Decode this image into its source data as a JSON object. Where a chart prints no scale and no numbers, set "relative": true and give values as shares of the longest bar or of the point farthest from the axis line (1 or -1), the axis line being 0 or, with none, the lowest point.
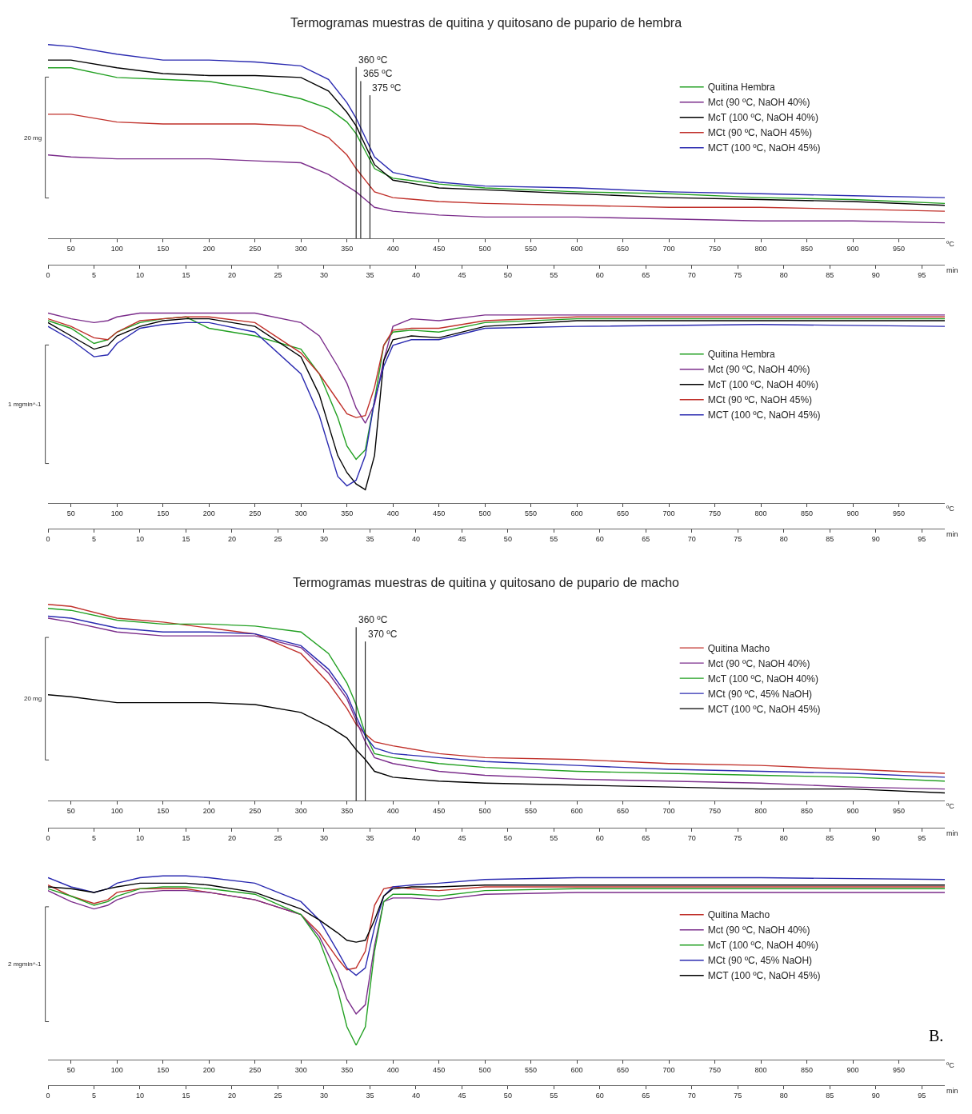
{
  "chart_data": [
    {
      "type": "line",
      "title": "Termogramas muestras de quitina y quitosano de pupario de hembra",
      "ylabel": "20 mg",
      "xlabel": "ºC",
      "x2label": "min",
      "relative": true,
      "legend": "right",
      "xlim": [
        25,
        1000
      ],
      "xticks": [
        50,
        100,
        150,
        200,
        250,
        300,
        350,
        400,
        450,
        500,
        550,
        600,
        650,
        700,
        750,
        800,
        850,
        900,
        950
      ],
      "x2lim": [
        0,
        97.5
      ],
      "x2ticks": [
        0,
        5,
        10,
        15,
        20,
        25,
        30,
        35,
        40,
        45,
        50,
        55,
        60,
        65,
        70,
        75,
        80,
        85,
        90,
        95
      ],
      "ref_lines": [
        {
          "axis": "x",
          "value": 360,
          "label": "360 ºC"
        },
        {
          "axis": "x",
          "value": 365,
          "label": "365 ºC"
        },
        {
          "axis": "x",
          "value": 375,
          "label": "375 ºC"
        }
      ],
      "x": [
        25,
        50,
        100,
        150,
        200,
        250,
        300,
        330,
        350,
        360,
        370,
        380,
        400,
        450,
        500,
        600,
        700,
        800,
        900,
        1000
      ],
      "series": [
        {
          "name": "Quitina Hembra",
          "color": "#22a022",
          "values": [
            0.88,
            0.88,
            0.83,
            0.82,
            0.81,
            0.77,
            0.72,
            0.67,
            0.6,
            0.54,
            0.45,
            0.36,
            0.31,
            0.28,
            0.26,
            0.24,
            0.23,
            0.21,
            0.2,
            0.18
          ]
        },
        {
          "name": "Mct (90 ºC, NaOH 40%)",
          "color": "#7b2d8b",
          "values": [
            0.43,
            0.42,
            0.41,
            0.41,
            0.41,
            0.4,
            0.39,
            0.33,
            0.27,
            0.24,
            0.2,
            0.16,
            0.14,
            0.12,
            0.11,
            0.11,
            0.1,
            0.09,
            0.09,
            0.08
          ]
        },
        {
          "name": "McT (100 ºC, NaOH 40%)",
          "color": "#000000",
          "values": [
            0.92,
            0.92,
            0.88,
            0.85,
            0.84,
            0.84,
            0.83,
            0.76,
            0.65,
            0.58,
            0.48,
            0.38,
            0.3,
            0.26,
            0.25,
            0.23,
            0.21,
            0.2,
            0.19,
            0.17
          ]
        },
        {
          "name": "MCt (90 ºC, NaOH 45%)",
          "color": "#c0302a",
          "values": [
            0.64,
            0.64,
            0.6,
            0.59,
            0.59,
            0.59,
            0.58,
            0.52,
            0.43,
            0.36,
            0.3,
            0.24,
            0.21,
            0.19,
            0.18,
            0.17,
            0.16,
            0.16,
            0.15,
            0.14
          ]
        },
        {
          "name": "MCT (100 ºC, NaOH 45%)",
          "color": "#2a2ab0",
          "values": [
            1.0,
            0.99,
            0.95,
            0.92,
            0.92,
            0.91,
            0.89,
            0.82,
            0.7,
            0.62,
            0.52,
            0.42,
            0.34,
            0.29,
            0.27,
            0.26,
            0.24,
            0.23,
            0.22,
            0.21
          ]
        }
      ]
    },
    {
      "type": "line",
      "ylabel": "1 mgmin^-1",
      "xlabel": "ºC",
      "x2label": "min",
      "relative": true,
      "legend": "right",
      "xlim": [
        25,
        1000
      ],
      "xticks": [
        50,
        100,
        150,
        200,
        250,
        300,
        350,
        400,
        450,
        500,
        550,
        600,
        650,
        700,
        750,
        800,
        850,
        900,
        950
      ],
      "x2lim": [
        0,
        97.5
      ],
      "x2ticks": [
        0,
        5,
        10,
        15,
        20,
        25,
        30,
        35,
        40,
        45,
        50,
        55,
        60,
        65,
        70,
        75,
        80,
        85,
        90,
        95
      ],
      "x": [
        25,
        50,
        75,
        90,
        100,
        125,
        150,
        175,
        200,
        250,
        300,
        320,
        340,
        350,
        360,
        370,
        380,
        390,
        400,
        420,
        450,
        500,
        600,
        800,
        1000
      ],
      "series": [
        {
          "name": "Quitina Hembra",
          "color": "#22a022",
          "values": [
            0.96,
            0.92,
            0.84,
            0.86,
            0.9,
            0.95,
            0.97,
            0.98,
            0.92,
            0.88,
            0.81,
            0.68,
            0.45,
            0.3,
            0.23,
            0.28,
            0.54,
            0.83,
            0.9,
            0.91,
            0.9,
            0.95,
            0.97,
            0.97,
            0.97
          ]
        },
        {
          "name": "Mct (90 ºC, NaOH 40%)",
          "color": "#7b2d8b",
          "values": [
            1.0,
            0.97,
            0.95,
            0.96,
            0.98,
            1.0,
            1.0,
            1.0,
            1.0,
            1.0,
            0.95,
            0.88,
            0.72,
            0.63,
            0.5,
            0.42,
            0.52,
            0.75,
            0.93,
            0.97,
            0.96,
            0.99,
            0.99,
            0.99,
            0.99
          ]
        },
        {
          "name": "McT (100 ºC, NaOH 40%)",
          "color": "#000000",
          "values": [
            0.95,
            0.88,
            0.81,
            0.83,
            0.88,
            0.93,
            0.96,
            0.97,
            0.97,
            0.93,
            0.77,
            0.57,
            0.25,
            0.16,
            0.1,
            0.07,
            0.25,
            0.75,
            0.86,
            0.88,
            0.87,
            0.93,
            0.96,
            0.96,
            0.96
          ]
        },
        {
          "name": "MCt (90 ºC, NaOH 45%)",
          "color": "#c0302a",
          "values": [
            0.97,
            0.93,
            0.87,
            0.86,
            0.9,
            0.96,
            0.97,
            0.98,
            0.98,
            0.95,
            0.79,
            0.68,
            0.54,
            0.47,
            0.45,
            0.46,
            0.61,
            0.83,
            0.91,
            0.92,
            0.92,
            0.96,
            0.98,
            0.98,
            0.98
          ]
        },
        {
          "name": "MCT (100 ºC, NaOH 45%)",
          "color": "#2a2ab0",
          "values": [
            0.93,
            0.86,
            0.77,
            0.78,
            0.84,
            0.92,
            0.94,
            0.95,
            0.95,
            0.9,
            0.68,
            0.46,
            0.14,
            0.09,
            0.12,
            0.25,
            0.54,
            0.72,
            0.83,
            0.86,
            0.86,
            0.92,
            0.93,
            0.94,
            0.93
          ]
        }
      ]
    },
    {
      "type": "line",
      "title": "Termogramas muestras de quitina y quitosano de pupario de macho",
      "ylabel": "20 mg",
      "xlabel": "ºC",
      "x2label": "min",
      "relative": true,
      "legend": "right",
      "xlim": [
        25,
        1000
      ],
      "xticks": [
        50,
        100,
        150,
        200,
        250,
        300,
        350,
        400,
        450,
        500,
        550,
        600,
        650,
        700,
        750,
        800,
        850,
        900,
        950
      ],
      "x2lim": [
        0,
        97.5
      ],
      "x2ticks": [
        0,
        5,
        10,
        15,
        20,
        25,
        30,
        35,
        40,
        45,
        50,
        55,
        60,
        65,
        70,
        75,
        80,
        85,
        90,
        95
      ],
      "ref_lines": [
        {
          "axis": "x",
          "value": 360,
          "label": "360 ºC"
        },
        {
          "axis": "x",
          "value": 370,
          "label": "370 ºC"
        }
      ],
      "x": [
        25,
        50,
        100,
        150,
        200,
        250,
        300,
        330,
        350,
        360,
        370,
        380,
        400,
        450,
        500,
        600,
        700,
        800,
        900,
        1000
      ],
      "series": [
        {
          "name": "Quitina Macho",
          "color": "#c0302a",
          "values": [
            1.0,
            0.99,
            0.93,
            0.91,
            0.88,
            0.85,
            0.75,
            0.6,
            0.47,
            0.39,
            0.34,
            0.3,
            0.28,
            0.24,
            0.22,
            0.21,
            0.19,
            0.18,
            0.16,
            0.14
          ]
        },
        {
          "name": "Mct (90 ºC, NaOH 40%)",
          "color": "#7b2d8b",
          "values": [
            0.93,
            0.91,
            0.86,
            0.84,
            0.84,
            0.84,
            0.78,
            0.65,
            0.52,
            0.41,
            0.3,
            0.22,
            0.19,
            0.15,
            0.13,
            0.11,
            0.1,
            0.09,
            0.07,
            0.06
          ]
        },
        {
          "name": "McT (100 ºC, NaOH 40%)",
          "color": "#22a022",
          "values": [
            0.98,
            0.97,
            0.92,
            0.9,
            0.9,
            0.89,
            0.86,
            0.75,
            0.6,
            0.49,
            0.34,
            0.24,
            0.22,
            0.19,
            0.17,
            0.15,
            0.14,
            0.13,
            0.12,
            0.1
          ]
        },
        {
          "name": "MCt (90 ºC, 45% NaOH)",
          "color": "#2a2ab0",
          "values": [
            0.94,
            0.93,
            0.88,
            0.86,
            0.86,
            0.85,
            0.79,
            0.67,
            0.54,
            0.43,
            0.33,
            0.27,
            0.24,
            0.22,
            0.2,
            0.18,
            0.16,
            0.15,
            0.14,
            0.12
          ]
        },
        {
          "name": "MCT (100 ºC, NaOH 45%)",
          "color": "#000000",
          "values": [
            0.54,
            0.53,
            0.5,
            0.5,
            0.5,
            0.49,
            0.45,
            0.38,
            0.32,
            0.26,
            0.21,
            0.15,
            0.12,
            0.1,
            0.09,
            0.08,
            0.07,
            0.06,
            0.06,
            0.04
          ]
        }
      ]
    },
    {
      "type": "line",
      "ylabel": "2 mgmin^-1",
      "xlabel": "ºC",
      "x2label": "min",
      "relative": true,
      "legend": "right",
      "annotations": [
        "B."
      ],
      "xlim": [
        25,
        1000
      ],
      "xticks": [
        50,
        100,
        150,
        200,
        250,
        300,
        350,
        400,
        450,
        500,
        550,
        600,
        650,
        700,
        750,
        800,
        850,
        900,
        950
      ],
      "x2lim": [
        0,
        97.5
      ],
      "x2ticks": [
        0,
        5,
        10,
        15,
        20,
        25,
        30,
        35,
        40,
        45,
        50,
        55,
        60,
        65,
        70,
        75,
        80,
        85,
        90,
        95
      ],
      "x": [
        25,
        50,
        75,
        90,
        100,
        125,
        150,
        175,
        200,
        250,
        300,
        320,
        340,
        350,
        360,
        370,
        380,
        390,
        400,
        420,
        450,
        500,
        600,
        800,
        1000
      ],
      "series": [
        {
          "name": "Quitina Macho",
          "color": "#c0302a",
          "values": [
            0.95,
            0.89,
            0.85,
            0.87,
            0.91,
            0.93,
            0.93,
            0.93,
            0.91,
            0.87,
            0.79,
            0.69,
            0.55,
            0.49,
            0.5,
            0.59,
            0.84,
            0.93,
            0.94,
            0.93,
            0.92,
            0.94,
            0.94,
            0.94,
            0.94
          ]
        },
        {
          "name": "Mct (90 ºC, NaOH 40%)",
          "color": "#7b2d8b",
          "values": [
            0.92,
            0.86,
            0.82,
            0.84,
            0.87,
            0.91,
            0.92,
            0.92,
            0.91,
            0.87,
            0.79,
            0.67,
            0.47,
            0.33,
            0.25,
            0.3,
            0.62,
            0.86,
            0.88,
            0.88,
            0.87,
            0.9,
            0.91,
            0.91,
            0.91
          ]
        },
        {
          "name": "McT (100 ºC, NaOH 40%)",
          "color": "#22a022",
          "values": [
            0.93,
            0.89,
            0.84,
            0.86,
            0.89,
            0.93,
            0.94,
            0.94,
            0.93,
            0.9,
            0.79,
            0.65,
            0.38,
            0.18,
            0.08,
            0.18,
            0.59,
            0.86,
            0.9,
            0.9,
            0.89,
            0.92,
            0.93,
            0.93,
            0.93
          ]
        },
        {
          "name": "MCt (90 ºC, 45% NaOH)",
          "color": "#2a2ab0",
          "values": [
            0.99,
            0.94,
            0.91,
            0.93,
            0.96,
            0.99,
            1.0,
            1.0,
            0.99,
            0.96,
            0.86,
            0.76,
            0.59,
            0.5,
            0.46,
            0.5,
            0.72,
            0.89,
            0.94,
            0.95,
            0.96,
            0.98,
            0.99,
            0.99,
            0.98
          ]
        },
        {
          "name": "MCT (100 ºC, NaOH 45%)",
          "color": "#000000",
          "values": [
            0.94,
            0.93,
            0.91,
            0.93,
            0.94,
            0.96,
            0.96,
            0.96,
            0.95,
            0.91,
            0.82,
            0.76,
            0.69,
            0.65,
            0.64,
            0.65,
            0.76,
            0.89,
            0.93,
            0.94,
            0.94,
            0.95,
            0.95,
            0.95,
            0.95
          ]
        }
      ]
    }
  ]
}
